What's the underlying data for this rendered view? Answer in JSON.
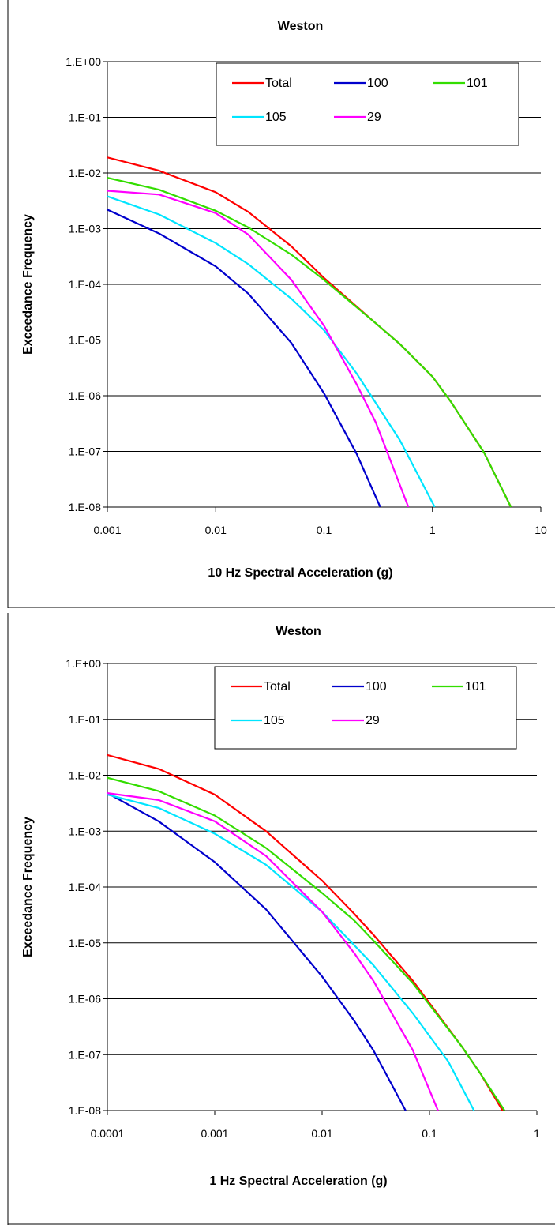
{
  "chart_data": [
    {
      "type": "line",
      "title": "Weston",
      "xlabel": "10 Hz Spectral Acceleration (g)",
      "ylabel": "Exceedance Frequency",
      "x_scale": "log",
      "y_scale": "log",
      "xlim": [
        0.001,
        10
      ],
      "ylim": [
        1e-08,
        1
      ],
      "x_ticks": [
        "0.001",
        "0.01",
        "0.1",
        "1",
        "10"
      ],
      "y_ticks": [
        "1.E-08",
        "1.E-07",
        "1.E-06",
        "1.E-05",
        "1.E-04",
        "1.E-03",
        "1.E-02",
        "1.E-01",
        "1.E+00"
      ],
      "grid": "horizontal",
      "legend_position": "top-right",
      "series": [
        {
          "name": "Total",
          "color": "#ff0000",
          "points": [
            [
              0.001,
              0.019
            ],
            [
              0.003,
              0.011
            ],
            [
              0.01,
              0.0045
            ],
            [
              0.02,
              0.002
            ],
            [
              0.05,
              0.00048
            ],
            [
              0.1,
              0.00013
            ],
            [
              0.3,
              2e-05
            ],
            [
              0.5,
              8.5e-06
            ],
            [
              1,
              2.2e-06
            ],
            [
              1.5,
              7.5e-07
            ],
            [
              3,
              9.5e-08
            ],
            [
              5.3,
              1e-08
            ]
          ]
        },
        {
          "name": "100",
          "color": "#0000cc",
          "points": [
            [
              0.001,
              0.0022
            ],
            [
              0.003,
              0.00082
            ],
            [
              0.01,
              0.00021
            ],
            [
              0.02,
              6.8e-05
            ],
            [
              0.05,
              8.8e-06
            ],
            [
              0.1,
              1.1e-06
            ],
            [
              0.2,
              9e-08
            ],
            [
              0.33,
              1e-08
            ]
          ]
        },
        {
          "name": "101",
          "color": "#33dd00",
          "points": [
            [
              0.001,
              0.0082
            ],
            [
              0.003,
              0.005
            ],
            [
              0.01,
              0.0021
            ],
            [
              0.02,
              0.00105
            ],
            [
              0.05,
              0.00034
            ],
            [
              0.1,
              0.00012
            ],
            [
              0.3,
              2e-05
            ],
            [
              0.5,
              8.5e-06
            ],
            [
              1,
              2.2e-06
            ],
            [
              1.5,
              7.5e-07
            ],
            [
              3,
              9.5e-08
            ],
            [
              5.3,
              1e-08
            ]
          ]
        },
        {
          "name": "105",
          "color": "#00e5ff",
          "points": [
            [
              0.001,
              0.0038
            ],
            [
              0.003,
              0.0018
            ],
            [
              0.01,
              0.00055
            ],
            [
              0.02,
              0.00023
            ],
            [
              0.05,
              5.5e-05
            ],
            [
              0.1,
              1.5e-05
            ],
            [
              0.2,
              2.5e-06
            ],
            [
              0.5,
              1.6e-07
            ],
            [
              1.05,
              1e-08
            ]
          ]
        },
        {
          "name": "29",
          "color": "#ff00ff",
          "points": [
            [
              0.001,
              0.0048
            ],
            [
              0.003,
              0.0041
            ],
            [
              0.01,
              0.0019
            ],
            [
              0.02,
              0.00078
            ],
            [
              0.05,
              0.00012
            ],
            [
              0.1,
              1.8e-05
            ],
            [
              0.2,
              1.6e-06
            ],
            [
              0.3,
              3.3e-07
            ],
            [
              0.6,
              1e-08
            ]
          ]
        }
      ]
    },
    {
      "type": "line",
      "title": "Weston",
      "xlabel": "1 Hz Spectral Acceleration (g)",
      "ylabel": "Exceedance Frequency",
      "x_scale": "log",
      "y_scale": "log",
      "xlim": [
        0.0001,
        1
      ],
      "ylim": [
        1e-08,
        1
      ],
      "x_ticks": [
        "0.0001",
        "0.001",
        "0.01",
        "0.1",
        "1"
      ],
      "y_ticks": [
        "1.E-08",
        "1.E-07",
        "1.E-06",
        "1.E-05",
        "1.E-04",
        "1.E-03",
        "1.E-02",
        "1.E-01",
        "1.E+00"
      ],
      "grid": "horizontal",
      "legend_position": "top-right",
      "series": [
        {
          "name": "Total",
          "color": "#ff0000",
          "points": [
            [
              0.0001,
              0.023
            ],
            [
              0.0003,
              0.013
            ],
            [
              0.001,
              0.0045
            ],
            [
              0.003,
              0.001
            ],
            [
              0.01,
              0.00013
            ],
            [
              0.02,
              3.3e-05
            ],
            [
              0.03,
              1.4e-05
            ],
            [
              0.07,
              2.1e-06
            ],
            [
              0.2,
              1.4e-07
            ],
            [
              0.3,
              4.5e-08
            ],
            [
              0.48,
              1e-08
            ]
          ]
        },
        {
          "name": "100",
          "color": "#0000cc",
          "points": [
            [
              0.0001,
              0.0048
            ],
            [
              0.0003,
              0.0015
            ],
            [
              0.001,
              0.00028
            ],
            [
              0.003,
              4e-05
            ],
            [
              0.01,
              2.5e-06
            ],
            [
              0.02,
              4e-07
            ],
            [
              0.03,
              1.2e-07
            ],
            [
              0.06,
              1e-08
            ]
          ]
        },
        {
          "name": "101",
          "color": "#33dd00",
          "points": [
            [
              0.0001,
              0.009
            ],
            [
              0.0003,
              0.0052
            ],
            [
              0.001,
              0.0019
            ],
            [
              0.003,
              0.0005
            ],
            [
              0.01,
              7.8e-05
            ],
            [
              0.02,
              2.5e-05
            ],
            [
              0.03,
              1.1e-05
            ],
            [
              0.07,
              1.9e-06
            ],
            [
              0.2,
              1.4e-07
            ],
            [
              0.3,
              4.5e-08
            ],
            [
              0.5,
              1e-08
            ]
          ]
        },
        {
          "name": "105",
          "color": "#00e5ff",
          "points": [
            [
              0.0001,
              0.0045
            ],
            [
              0.0003,
              0.0026
            ],
            [
              0.001,
              0.0009
            ],
            [
              0.003,
              0.00025
            ],
            [
              0.01,
              3.6e-05
            ],
            [
              0.03,
              4e-06
            ],
            [
              0.07,
              5.5e-07
            ],
            [
              0.15,
              7.5e-08
            ],
            [
              0.26,
              1e-08
            ]
          ]
        },
        {
          "name": "29",
          "color": "#ff00ff",
          "points": [
            [
              0.0001,
              0.0048
            ],
            [
              0.0003,
              0.0036
            ],
            [
              0.001,
              0.0015
            ],
            [
              0.003,
              0.00036
            ],
            [
              0.01,
              3.6e-05
            ],
            [
              0.02,
              6.5e-06
            ],
            [
              0.03,
              2.1e-06
            ],
            [
              0.07,
              1.2e-07
            ],
            [
              0.12,
              1e-08
            ]
          ]
        }
      ]
    }
  ]
}
